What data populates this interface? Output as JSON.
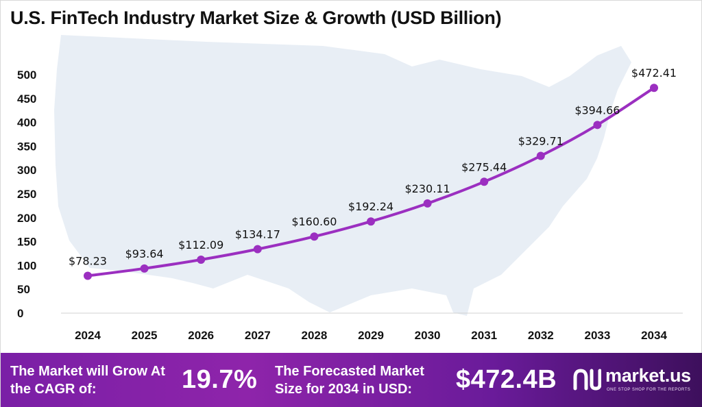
{
  "title": "U.S. FinTech Industry Market Size & Growth (USD Billion)",
  "colors": {
    "line": "#9b2fc0",
    "marker": "#9b2fc0",
    "map": "#e8eef5",
    "footer_start": "#7a1fa6",
    "footer_end": "#3d0f5c"
  },
  "chart_data": {
    "type": "line",
    "title": "U.S. FinTech Industry Market Size & Growth (USD Billion)",
    "xlabel": "",
    "ylabel": "",
    "categories": [
      "2024",
      "2025",
      "2026",
      "2027",
      "2028",
      "2029",
      "2030",
      "2031",
      "2032",
      "2033",
      "2034"
    ],
    "series": [
      {
        "name": "Market Size (USD Billion)",
        "values": [
          78.23,
          93.64,
          112.09,
          134.17,
          160.6,
          192.24,
          230.11,
          275.44,
          329.71,
          394.66,
          472.41
        ]
      }
    ],
    "data_labels": [
      "$78.23",
      "$93.64",
      "$112.09",
      "$134.17",
      "$160.60",
      "$192.24",
      "$230.11",
      "$275.44",
      "$329.71",
      "$394.66",
      "$472.41"
    ],
    "yticks": [
      "0",
      "50",
      "100",
      "150",
      "200",
      "250",
      "300",
      "350",
      "400",
      "450",
      "500"
    ],
    "ylim": [
      0,
      500
    ],
    "grid": false,
    "legend": "none"
  },
  "footer": {
    "cagr_label": "The Market will Grow At the CAGR of:",
    "cagr_value": "19.7%",
    "forecast_label": "The Forecasted Market Size for 2034 in USD:",
    "forecast_value": "$472.4B",
    "brand_name": "market.us",
    "brand_tagline": "ONE STOP SHOP FOR THE REPORTS"
  }
}
